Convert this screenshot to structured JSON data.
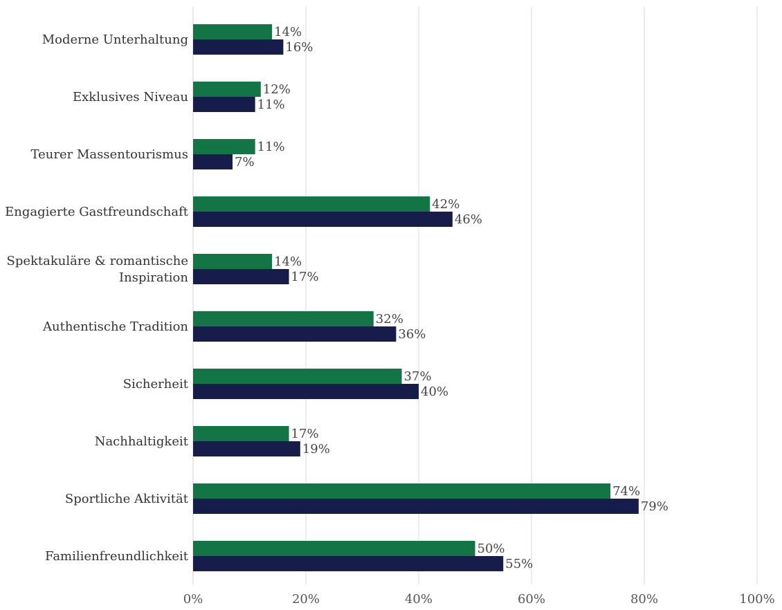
{
  "chart_data": {
    "type": "bar",
    "orientation": "horizontal",
    "categories": [
      "Moderne Unterhaltung",
      "Exklusives Niveau",
      "Teurer Massentourismus",
      "Engagierte Gastfreundschaft",
      "Spektakuläre & romantische Inspiration",
      "Authentische Tradition",
      "Sicherheit",
      "Nachhaltigkeit",
      "Sportliche Aktivität",
      "Familienfreundlichkeit"
    ],
    "category_lines": [
      [
        "Moderne Unterhaltung"
      ],
      [
        "Exklusives Niveau"
      ],
      [
        "Teurer Massentourismus"
      ],
      [
        "Engagierte Gastfreundschaft"
      ],
      [
        "Spektakuläre & romantische",
        "Inspiration"
      ],
      [
        "Authentische Tradition"
      ],
      [
        "Sicherheit"
      ],
      [
        "Nachhaltigkeit"
      ],
      [
        "Sportliche Aktivität"
      ],
      [
        "Familienfreundlichkeit"
      ]
    ],
    "series": [
      {
        "color": "#137546",
        "values": [
          14,
          12,
          11,
          42,
          14,
          32,
          37,
          17,
          74,
          50
        ],
        "labels": [
          "14%",
          "12%",
          "11%",
          "42%",
          "14%",
          "32%",
          "37%",
          "17%",
          "74%",
          "50%"
        ]
      },
      {
        "color": "#161d4a",
        "values": [
          16,
          11,
          7,
          46,
          17,
          36,
          40,
          19,
          79,
          55
        ],
        "labels": [
          "16%",
          "11%",
          "7%",
          "46%",
          "17%",
          "36%",
          "40%",
          "19%",
          "79%",
          "55%"
        ]
      }
    ],
    "xlim": [
      0,
      100
    ],
    "x_ticks": [
      0,
      20,
      40,
      60,
      80,
      100
    ],
    "x_tick_labels": [
      "0%",
      "20%",
      "40%",
      "60%",
      "80%",
      "100%"
    ],
    "grid": true,
    "grid_color": "#e6e6e6",
    "title": "",
    "xlabel": "",
    "ylabel": ""
  }
}
